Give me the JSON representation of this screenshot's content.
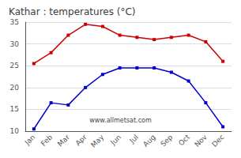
{
  "chart_data": {
    "type": "line",
    "title": "Kathar : temperatures (°C)",
    "categories": [
      "Jan",
      "Feb",
      "Mar",
      "Apr",
      "May",
      "Jun",
      "Jul",
      "Aug",
      "Sep",
      "Oct",
      "Nov",
      "Dec"
    ],
    "series": [
      {
        "color": "#cc0000",
        "marker": "square",
        "values": [
          25.5,
          28.0,
          32.0,
          34.5,
          34.0,
          32.0,
          31.5,
          31.0,
          31.5,
          32.0,
          30.5,
          26.0
        ]
      },
      {
        "color": "#0000cc",
        "marker": "square",
        "values": [
          10.5,
          16.5,
          16.0,
          20.0,
          23.0,
          24.5,
          24.5,
          24.5,
          23.5,
          21.5,
          16.5,
          11.0
        ]
      }
    ],
    "ylim": [
      10,
      35
    ],
    "yticks": [
      10,
      15,
      20,
      25,
      30,
      35
    ],
    "grid": true,
    "annotation": "www.allmetsat.com"
  }
}
